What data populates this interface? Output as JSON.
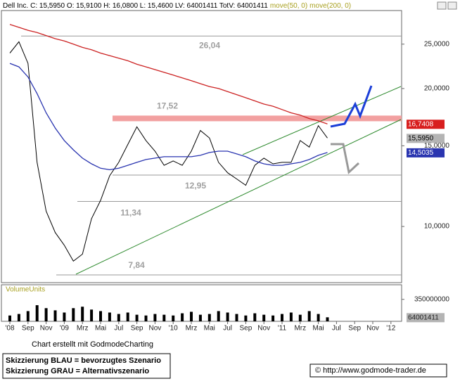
{
  "chart_data": {
    "type": "line",
    "log": true,
    "quote": "C: 15,5950  O: 15,9100  H: 16,0800  L: 15,4600  LV: 64001411  TotV: 64001411",
    "categories": [
      "'08",
      null,
      "Sep",
      null,
      "Nov",
      null,
      "'09",
      null,
      "Mrz",
      null,
      "Mai",
      null,
      "Jul",
      null,
      "Sep",
      null,
      "Nov",
      null,
      "'10",
      null,
      "Mrz",
      null,
      "Mai",
      null,
      "Jul",
      null,
      "Sep",
      null,
      "Nov",
      null,
      "'11",
      null,
      "Mrz",
      null,
      "Mai",
      null,
      "Jul",
      null,
      "Sep",
      null,
      "Nov",
      null,
      "'12"
    ],
    "series": [
      {
        "name": "Dell Inc.",
        "color": "#000000",
        "label_color": "#b4b4b4",
        "label_text_color": "#000000",
        "last_value_label": "15,5950",
        "values": [
          23.9,
          25.3,
          22.7,
          13.8,
          10.8,
          9.7,
          9.1,
          8.4,
          8.7,
          10.4,
          11.4,
          12.9,
          13.8,
          15.1,
          16.5,
          15.4,
          14.6,
          13.6,
          13.9,
          13.6,
          14.6,
          16.2,
          15.6,
          13.8,
          13.1,
          12.7,
          12.3,
          13.6,
          14.1,
          13.7,
          13.8,
          13.8,
          15.4,
          14.9,
          16.6,
          15.595,
          null,
          null,
          null,
          null,
          null,
          null,
          null
        ]
      },
      {
        "name": "move(50, 0)",
        "color": "#2a35b0",
        "label_color": "#2a35b0",
        "label_text_color": "#ffffff",
        "last_value_label": "14,5035",
        "values": [
          22.7,
          22.3,
          21.2,
          19.5,
          17.7,
          16.4,
          15.4,
          14.7,
          14.1,
          13.7,
          13.4,
          13.3,
          13.4,
          13.6,
          13.8,
          14.0,
          14.1,
          14.2,
          14.2,
          14.2,
          14.2,
          14.3,
          14.5,
          14.6,
          14.6,
          14.4,
          14.2,
          13.9,
          13.7,
          13.6,
          13.6,
          13.7,
          13.8,
          14.0,
          14.3,
          14.5035,
          null,
          null,
          null,
          null,
          null,
          null,
          null
        ]
      },
      {
        "name": "move(200, 0)",
        "color": "#cc2222",
        "label_color": "#d81e1e",
        "label_text_color": "#ffffff",
        "last_value_label": "16,7408",
        "values": [
          27.6,
          27.2,
          26.8,
          26.5,
          26.1,
          25.7,
          25.4,
          25.0,
          24.6,
          24.3,
          23.9,
          23.6,
          23.3,
          23.0,
          22.6,
          22.3,
          22.0,
          21.7,
          21.4,
          21.1,
          20.8,
          20.5,
          20.2,
          20.0,
          19.7,
          19.4,
          19.1,
          18.8,
          18.5,
          18.3,
          18.0,
          17.7,
          17.5,
          17.2,
          17.0,
          16.7408,
          null,
          null,
          null,
          null,
          null,
          null,
          null
        ]
      }
    ],
    "ylim": [
      7.54,
      29.6
    ],
    "yticks": [
      {
        "value": 10,
        "label": "10,0000"
      },
      {
        "value": 15,
        "label": "15,0000"
      },
      {
        "value": 20,
        "label": "20,0000"
      },
      {
        "value": 25,
        "label": "25,0000"
      }
    ],
    "levels": [
      {
        "value": 26.04,
        "label": "26,04"
      },
      {
        "value": 17.52,
        "label": "17,52"
      },
      {
        "value": 12.95,
        "label": "12,95"
      },
      {
        "value": 11.34,
        "label": "11,34"
      },
      {
        "value": 7.84,
        "label": "7,84"
      }
    ],
    "level_color": "#999999",
    "band_color": "#f2a0a0",
    "volume": {
      "title": "VolumeUnits",
      "color": "#000000",
      "ylim": [
        0,
        583000000
      ],
      "yticks": [
        350000000
      ],
      "values": [
        93000000,
        117000000,
        163000000,
        257000000,
        210000000,
        175000000,
        140000000,
        210000000,
        233000000,
        187000000,
        163000000,
        140000000,
        117000000,
        140000000,
        105000000,
        93000000,
        117000000,
        105000000,
        93000000,
        128000000,
        152000000,
        105000000,
        117000000,
        163000000,
        140000000,
        117000000,
        93000000,
        128000000,
        105000000,
        93000000,
        117000000,
        140000000,
        105000000,
        163000000,
        117000000,
        64001411,
        null,
        null,
        null,
        null,
        null,
        null,
        null
      ]
    },
    "credit": "Chart erstellt mit GodmodeCharting",
    "legend_notes": [
      "Skizzierung BLAU = bevorzugtes Szenario",
      "Skizzierung GRAU = Alternativszenario"
    ],
    "copyright": "© http://www.godmode-trader.de"
  }
}
